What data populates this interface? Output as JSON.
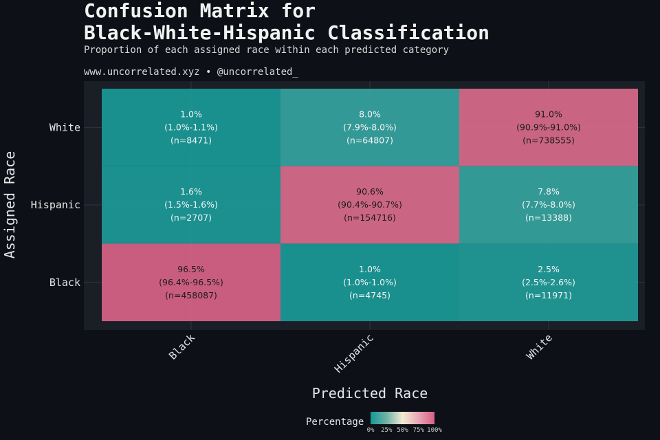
{
  "title_line1": "Confusion Matrix for",
  "title_line2": "Black-White-Hispanic Classification",
  "subtitle": "Proportion of each assigned race within each predicted category",
  "credit": "www.uncorrelated.xyz • @uncorrelated_",
  "colors": {
    "background": "#0d1117",
    "panel": "#1a1e26",
    "low": "#159896",
    "mid": "#f3ead2",
    "high": "#d75f85"
  },
  "chart_data": {
    "type": "heatmap",
    "xlabel": "Predicted Race",
    "ylabel": "Assigned Race",
    "x_categories": [
      "Black",
      "Hispanic",
      "White"
    ],
    "y_categories": [
      "Black",
      "Hispanic",
      "White"
    ],
    "cells": [
      {
        "assigned": "White",
        "predicted": "Black",
        "value": 1.0,
        "pct": "1.0%",
        "ci": "(1.0%-1.1%)",
        "n": "(n=8471)"
      },
      {
        "assigned": "White",
        "predicted": "Hispanic",
        "value": 8.0,
        "pct": "8.0%",
        "ci": "(7.9%-8.0%)",
        "n": "(n=64807)"
      },
      {
        "assigned": "White",
        "predicted": "White",
        "value": 91.0,
        "pct": "91.0%",
        "ci": "(90.9%-91.0%)",
        "n": "(n=738555)"
      },
      {
        "assigned": "Hispanic",
        "predicted": "Black",
        "value": 1.6,
        "pct": "1.6%",
        "ci": "(1.5%-1.6%)",
        "n": "(n=2707)"
      },
      {
        "assigned": "Hispanic",
        "predicted": "Hispanic",
        "value": 90.6,
        "pct": "90.6%",
        "ci": "(90.4%-90.7%)",
        "n": "(n=154716)"
      },
      {
        "assigned": "Hispanic",
        "predicted": "White",
        "value": 7.8,
        "pct": "7.8%",
        "ci": "(7.7%-8.0%)",
        "n": "(n=13388)"
      },
      {
        "assigned": "Black",
        "predicted": "Black",
        "value": 96.5,
        "pct": "96.5%",
        "ci": "(96.4%-96.5%)",
        "n": "(n=458087)"
      },
      {
        "assigned": "Black",
        "predicted": "Hispanic",
        "value": 1.0,
        "pct": "1.0%",
        "ci": "(1.0%-1.0%)",
        "n": "(n=4745)"
      },
      {
        "assigned": "Black",
        "predicted": "White",
        "value": 2.5,
        "pct": "2.5%",
        "ci": "(2.5%-2.6%)",
        "n": "(n=11971)"
      }
    ],
    "legend": {
      "title": "Percentage",
      "ticks": [
        "0%",
        "25%",
        "50%",
        "75%",
        "100%"
      ],
      "range": [
        0,
        100
      ]
    }
  }
}
